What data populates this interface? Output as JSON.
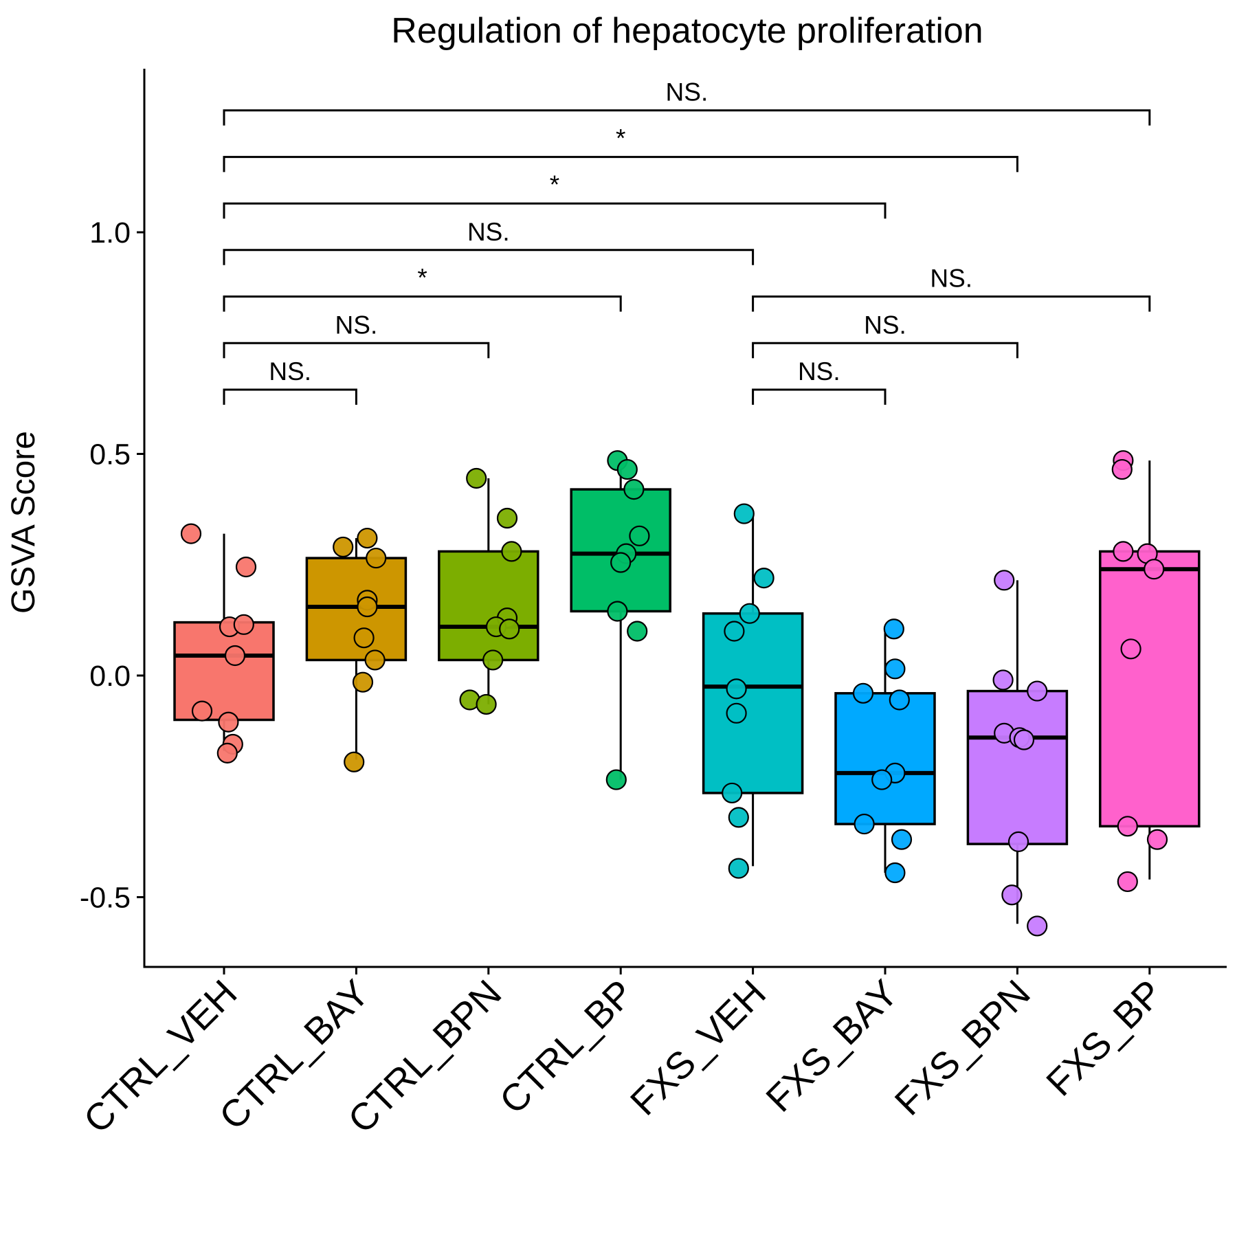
{
  "chart_data": {
    "type": "box",
    "title": "Regulation of hepatocyte proliferation",
    "xlabel": "",
    "ylabel": "GSVA Score",
    "ylim": [
      -0.65,
      1.37
    ],
    "yticks": [
      -0.5,
      0.0,
      0.5,
      1.0
    ],
    "ytick_labels": [
      "-0.5",
      "0.0",
      "0.5",
      "1.0"
    ],
    "grid": false,
    "legend": "none",
    "categories": [
      "CTRL_VEH",
      "CTRL_BAY",
      "CTRL_BPN",
      "CTRL_BP",
      "FXS_VEH",
      "FXS_BAY",
      "FXS_BPN",
      "FXS_BP"
    ],
    "colors": [
      "#F8766D",
      "#CD9600",
      "#7CAE00",
      "#00BE67",
      "#00BFC4",
      "#00A9FF",
      "#C77CFF",
      "#FF61CC"
    ],
    "boxes": [
      {
        "whisker_low": -0.17,
        "q1": -0.1,
        "median": 0.045,
        "q3": 0.12,
        "whisker_high": 0.32
      },
      {
        "whisker_low": -0.19,
        "q1": 0.035,
        "median": 0.155,
        "q3": 0.265,
        "whisker_high": 0.31
      },
      {
        "whisker_low": -0.065,
        "q1": 0.035,
        "median": 0.11,
        "q3": 0.28,
        "whisker_high": 0.445
      },
      {
        "whisker_low": -0.235,
        "q1": 0.145,
        "median": 0.275,
        "q3": 0.42,
        "whisker_high": 0.48
      },
      {
        "whisker_low": -0.43,
        "q1": -0.265,
        "median": -0.025,
        "q3": 0.14,
        "whisker_high": 0.36
      },
      {
        "whisker_low": -0.445,
        "q1": -0.335,
        "median": -0.22,
        "q3": -0.04,
        "whisker_high": 0.105
      },
      {
        "whisker_low": -0.56,
        "q1": -0.38,
        "median": -0.14,
        "q3": -0.035,
        "whisker_high": 0.215
      },
      {
        "whisker_low": -0.46,
        "q1": -0.34,
        "median": 0.24,
        "q3": 0.28,
        "whisker_high": 0.485
      }
    ],
    "points": [
      [
        [
          -0.3,
          0.32
        ],
        [
          0.2,
          0.245
        ],
        [
          0.05,
          0.11
        ],
        [
          0.18,
          0.115
        ],
        [
          0.1,
          0.045
        ],
        [
          -0.2,
          -0.08
        ],
        [
          0.04,
          -0.105
        ],
        [
          0.08,
          -0.155
        ],
        [
          0.03,
          -0.175
        ]
      ],
      [
        [
          -0.12,
          0.29
        ],
        [
          0.1,
          0.31
        ],
        [
          0.18,
          0.265
        ],
        [
          0.1,
          0.17
        ],
        [
          0.1,
          0.155
        ],
        [
          0.07,
          0.085
        ],
        [
          0.17,
          0.035
        ],
        [
          0.06,
          -0.015
        ],
        [
          -0.02,
          -0.195
        ]
      ],
      [
        [
          -0.11,
          0.445
        ],
        [
          0.17,
          0.355
        ],
        [
          0.21,
          0.28
        ],
        [
          0.17,
          0.13
        ],
        [
          0.07,
          0.11
        ],
        [
          0.19,
          0.105
        ],
        [
          0.04,
          0.035
        ],
        [
          -0.17,
          -0.055
        ],
        [
          -0.02,
          -0.065
        ]
      ],
      [
        [
          -0.03,
          0.485
        ],
        [
          0.06,
          0.465
        ],
        [
          0.12,
          0.42
        ],
        [
          0.17,
          0.315
        ],
        [
          0.05,
          0.275
        ],
        [
          0.0,
          0.255
        ],
        [
          -0.03,
          0.145
        ],
        [
          0.15,
          0.1
        ],
        [
          -0.04,
          -0.235
        ]
      ],
      [
        [
          -0.08,
          0.365
        ],
        [
          0.1,
          0.22
        ],
        [
          -0.03,
          0.14
        ],
        [
          -0.17,
          0.1
        ],
        [
          -0.15,
          -0.03
        ],
        [
          -0.15,
          -0.085
        ],
        [
          -0.19,
          -0.265
        ],
        [
          -0.13,
          -0.32
        ],
        [
          -0.13,
          -0.435
        ]
      ],
      [
        [
          -0.2,
          -0.04
        ],
        [
          0.08,
          0.105
        ],
        [
          0.09,
          0.015
        ],
        [
          0.13,
          -0.055
        ],
        [
          0.09,
          -0.22
        ],
        [
          -0.03,
          -0.235
        ],
        [
          -0.19,
          -0.335
        ],
        [
          0.15,
          -0.37
        ],
        [
          0.09,
          -0.445
        ]
      ],
      [
        [
          -0.12,
          0.215
        ],
        [
          -0.13,
          -0.01
        ],
        [
          0.18,
          -0.035
        ],
        [
          -0.12,
          -0.13
        ],
        [
          0.02,
          -0.14
        ],
        [
          0.06,
          -0.145
        ],
        [
          0.01,
          -0.375
        ],
        [
          -0.05,
          -0.495
        ],
        [
          0.18,
          -0.565
        ]
      ],
      [
        [
          -0.24,
          0.485
        ],
        [
          -0.25,
          0.465
        ],
        [
          -0.24,
          0.28
        ],
        [
          -0.02,
          0.275
        ],
        [
          0.04,
          0.24
        ],
        [
          -0.17,
          0.06
        ],
        [
          -0.2,
          -0.34
        ],
        [
          0.07,
          -0.37
        ],
        [
          -0.2,
          -0.465
        ]
      ]
    ],
    "comparisons": [
      {
        "from": 0,
        "to": 1,
        "y": 0.645,
        "label": "NS."
      },
      {
        "from": 0,
        "to": 2,
        "y": 0.75,
        "label": "NS."
      },
      {
        "from": 0,
        "to": 3,
        "y": 0.855,
        "label": "*"
      },
      {
        "from": 0,
        "to": 4,
        "y": 0.96,
        "label": "NS."
      },
      {
        "from": 0,
        "to": 5,
        "y": 1.065,
        "label": "*"
      },
      {
        "from": 0,
        "to": 6,
        "y": 1.17,
        "label": "*"
      },
      {
        "from": 0,
        "to": 7,
        "y": 1.275,
        "label": "NS."
      },
      {
        "from": 4,
        "to": 5,
        "y": 0.645,
        "label": "NS."
      },
      {
        "from": 4,
        "to": 6,
        "y": 0.75,
        "label": "NS."
      },
      {
        "from": 4,
        "to": 7,
        "y": 0.855,
        "label": "NS."
      }
    ]
  }
}
